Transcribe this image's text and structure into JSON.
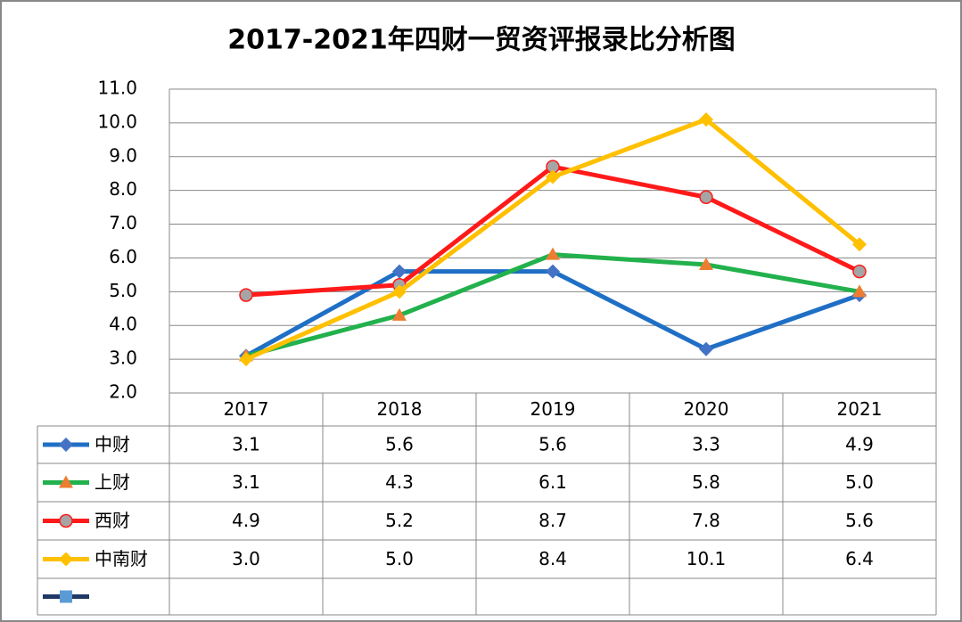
{
  "chart_data": {
    "type": "line",
    "title": "2017-2021年四财一贸资评报录比分析图",
    "categories": [
      "2017",
      "2018",
      "2019",
      "2020",
      "2021"
    ],
    "ylim": [
      2,
      11
    ],
    "yticks": [
      {
        "value": 2,
        "label": "2.0"
      },
      {
        "value": 3,
        "label": "3.0"
      },
      {
        "value": 4,
        "label": "4.0"
      },
      {
        "value": 5,
        "label": "5.0"
      },
      {
        "value": 6,
        "label": "6.0"
      },
      {
        "value": 7,
        "label": "7.0"
      },
      {
        "value": 8,
        "label": "8.0"
      },
      {
        "value": 9,
        "label": "9.0"
      },
      {
        "value": 10,
        "label": "10.0"
      },
      {
        "value": 11,
        "label": "11.0"
      }
    ],
    "grid": true,
    "series": [
      {
        "name": "中财",
        "color": "#1f6fc5",
        "marker": "diamond",
        "marker_color": "#4472c4",
        "values": [
          3.1,
          5.6,
          5.6,
          3.3,
          4.9
        ],
        "value_labels": [
          "3.1",
          "5.6",
          "5.6",
          "3.3",
          "4.9"
        ]
      },
      {
        "name": "上财",
        "color": "#22b14c",
        "marker": "triangle",
        "marker_color": "#ed7d31",
        "values": [
          3.1,
          4.3,
          6.1,
          5.8,
          5.0
        ],
        "value_labels": [
          "3.1",
          "4.3",
          "6.1",
          "5.8",
          "5.0"
        ]
      },
      {
        "name": "西财",
        "color": "#ff1a1a",
        "marker": "circle",
        "marker_color": "#a5a5a5",
        "values": [
          4.9,
          5.2,
          8.7,
          7.8,
          5.6
        ],
        "value_labels": [
          "4.9",
          "5.2",
          "8.7",
          "7.8",
          "5.6"
        ]
      },
      {
        "name": "中南财",
        "color": "#ffc000",
        "marker": "diamond",
        "marker_color": "#ffc000",
        "values": [
          3.0,
          5.0,
          8.4,
          10.1,
          6.4
        ],
        "value_labels": [
          "3.0",
          "5.0",
          "8.4",
          "10.1",
          "6.4"
        ]
      },
      {
        "color": "#1f3864",
        "marker": "square",
        "marker_color": "#5b9bd5",
        "values": [
          null,
          null,
          null,
          null,
          null
        ]
      }
    ]
  }
}
